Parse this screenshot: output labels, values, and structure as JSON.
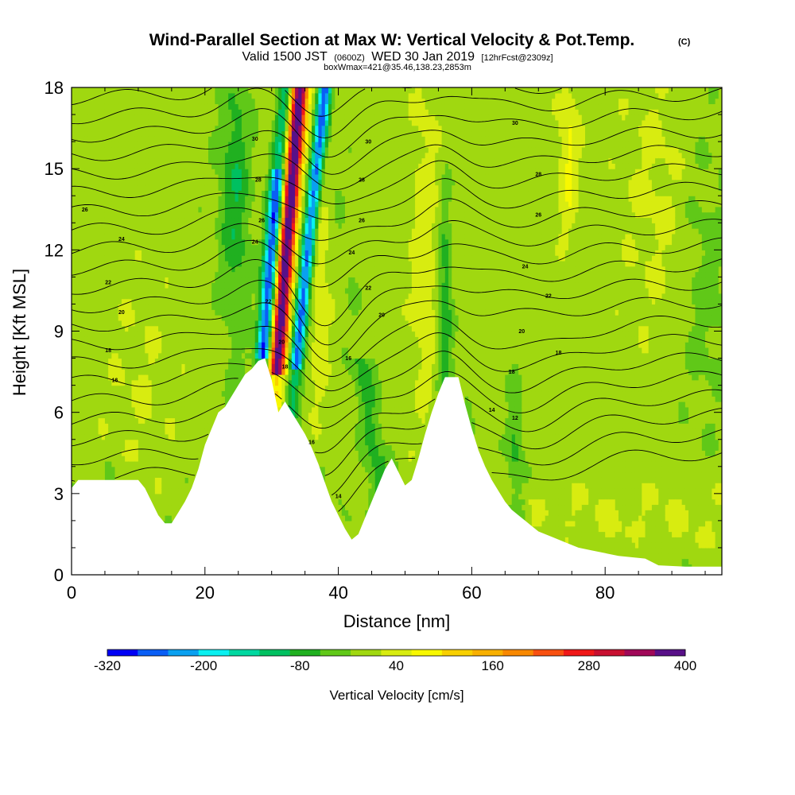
{
  "chart_data": {
    "type": "heatmap",
    "title": "Wind-Parallel Section at Max W: Vertical Velocity & Pot.Temp.",
    "title_mark": "(C)",
    "subtitle": {
      "valid": "Valid 1500 JST",
      "utc": "(0600Z)",
      "date": "WED 30 Jan 2019",
      "fcst": "[12hrFcst@2309z]"
    },
    "annotation": "boxWmax=421@35.46,138.23,2853m",
    "xlabel": "Distance [nm]",
    "ylabel": "Height [Kft MSL]",
    "xlim": [
      0,
      97.5
    ],
    "ylim": [
      0,
      18
    ],
    "x_ticks": [
      0,
      20,
      40,
      60,
      80
    ],
    "y_ticks": [
      0,
      3,
      6,
      9,
      12,
      15,
      18
    ],
    "colorbar": {
      "title": "Vertical Velocity [cm/s]",
      "min": -320,
      "max": 400,
      "step": 40,
      "tick_labels": [
        "-320",
        "-200",
        "-80",
        "40",
        "160",
        "280",
        "400"
      ],
      "colors": [
        "#0000f5",
        "#0a5ef5",
        "#0aa0f0",
        "#0af0f0",
        "#00d8a0",
        "#00c060",
        "#20b020",
        "#60c818",
        "#a0d810",
        "#d8ec10",
        "#f8f800",
        "#f8d000",
        "#f8b000",
        "#f88800",
        "#f85010",
        "#f01818",
        "#c81030",
        "#a00858",
        "#581088"
      ]
    },
    "terrain_kft": [
      [
        0,
        3.2
      ],
      [
        1,
        3.5
      ],
      [
        10,
        3.5
      ],
      [
        11,
        3.2
      ],
      [
        12,
        2.7
      ],
      [
        13,
        2.2
      ],
      [
        14,
        1.9
      ],
      [
        15,
        1.9
      ],
      [
        16,
        2.3
      ],
      [
        17,
        2.7
      ],
      [
        18,
        3.2
      ],
      [
        19,
        3.9
      ],
      [
        20,
        4.8
      ],
      [
        21,
        5.4
      ],
      [
        22,
        6.0
      ],
      [
        23,
        6.2
      ],
      [
        24,
        6.6
      ],
      [
        25,
        7.0
      ],
      [
        26,
        7.4
      ],
      [
        27,
        7.6
      ],
      [
        28,
        7.9
      ],
      [
        29,
        8.0
      ],
      [
        30,
        7.2
      ],
      [
        31,
        6.0
      ],
      [
        32,
        6.4
      ],
      [
        33,
        6.0
      ],
      [
        34,
        5.6
      ],
      [
        35,
        5.2
      ],
      [
        36,
        4.7
      ],
      [
        37,
        4.1
      ],
      [
        38,
        3.4
      ],
      [
        39,
        2.7
      ],
      [
        40,
        2.2
      ],
      [
        41,
        1.7
      ],
      [
        42,
        1.3
      ],
      [
        43,
        1.5
      ],
      [
        44,
        2.1
      ],
      [
        45,
        2.7
      ],
      [
        46,
        3.3
      ],
      [
        47,
        3.9
      ],
      [
        48,
        4.3
      ],
      [
        49,
        3.8
      ],
      [
        50,
        3.3
      ],
      [
        51,
        3.5
      ],
      [
        52,
        4.3
      ],
      [
        53,
        5.2
      ],
      [
        54,
        6.0
      ],
      [
        55,
        6.7
      ],
      [
        56,
        7.3
      ],
      [
        58,
        7.3
      ],
      [
        59,
        6.3
      ],
      [
        60,
        5.4
      ],
      [
        61,
        4.6
      ],
      [
        62,
        4.0
      ],
      [
        63,
        3.5
      ],
      [
        64,
        3.1
      ],
      [
        65,
        2.7
      ],
      [
        66,
        2.4
      ],
      [
        67,
        2.2
      ],
      [
        68,
        2.0
      ],
      [
        69,
        1.8
      ],
      [
        70,
        1.6
      ],
      [
        72,
        1.4
      ],
      [
        74,
        1.2
      ],
      [
        76,
        1.0
      ],
      [
        78,
        0.9
      ],
      [
        80,
        0.8
      ],
      [
        82,
        0.7
      ],
      [
        86,
        0.6
      ],
      [
        88,
        0.35
      ],
      [
        92,
        0.3
      ],
      [
        97.5,
        0.3
      ]
    ],
    "theta_contours": [
      {
        "label": "26",
        "x": 2,
        "y": 13.5
      },
      {
        "label": "24",
        "x": 7.5,
        "y": 12.4
      },
      {
        "label": "22",
        "x": 5.5,
        "y": 10.8
      },
      {
        "label": "20",
        "x": 7.5,
        "y": 9.7
      },
      {
        "label": "18",
        "x": 5.5,
        "y": 8.3
      },
      {
        "label": "16",
        "x": 6.5,
        "y": 7.2
      },
      {
        "label": "30",
        "x": 27.5,
        "y": 16.1
      },
      {
        "label": "28",
        "x": 28,
        "y": 14.6
      },
      {
        "label": "26",
        "x": 28.5,
        "y": 13.1
      },
      {
        "label": "24",
        "x": 27.5,
        "y": 12.3
      },
      {
        "label": "22",
        "x": 29.5,
        "y": 10.1
      },
      {
        "label": "20",
        "x": 31.5,
        "y": 8.6
      },
      {
        "label": "18",
        "x": 32,
        "y": 7.7
      },
      {
        "label": "30",
        "x": 44.5,
        "y": 16.0
      },
      {
        "label": "28",
        "x": 43.5,
        "y": 14.6
      },
      {
        "label": "26",
        "x": 43.5,
        "y": 13.1
      },
      {
        "label": "24",
        "x": 42,
        "y": 11.9
      },
      {
        "label": "22",
        "x": 44.5,
        "y": 10.6
      },
      {
        "label": "20",
        "x": 46.5,
        "y": 9.6
      },
      {
        "label": "16",
        "x": 41.5,
        "y": 8.0
      },
      {
        "label": "16",
        "x": 36,
        "y": 4.9
      },
      {
        "label": "14",
        "x": 40,
        "y": 2.9
      },
      {
        "label": "30",
        "x": 66.5,
        "y": 16.7
      },
      {
        "label": "28",
        "x": 70,
        "y": 14.8
      },
      {
        "label": "26",
        "x": 70,
        "y": 13.3
      },
      {
        "label": "24",
        "x": 68,
        "y": 11.4
      },
      {
        "label": "22",
        "x": 71.5,
        "y": 10.3
      },
      {
        "label": "20",
        "x": 67.5,
        "y": 9.0
      },
      {
        "label": "18",
        "x": 73,
        "y": 8.2
      },
      {
        "label": "18",
        "x": 66,
        "y": 7.5
      },
      {
        "label": "14",
        "x": 63,
        "y": 6.1
      },
      {
        "label": "12",
        "x": 66.5,
        "y": 5.8
      }
    ]
  }
}
